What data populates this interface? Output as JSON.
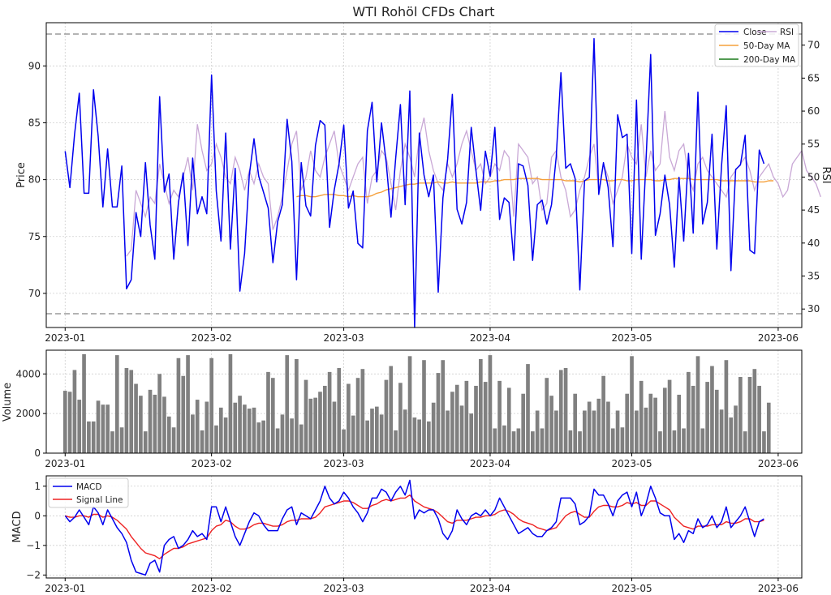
{
  "chart_data": [
    {
      "type": "line",
      "title": "WTI Rohöl CFDs Chart",
      "xlabel": "",
      "ylabel": "Price",
      "y2label": "RSI",
      "xlim": [
        "2022-12-28",
        "2023-06-06"
      ],
      "ylim": [
        67,
        93.8
      ],
      "y2lim": [
        27.2,
        73.4
      ],
      "x_ticks": [
        "2023-01",
        "2023-02",
        "2023-03",
        "2023-04",
        "2023-05",
        "2023-06"
      ],
      "y_ticks": [
        "70",
        "75",
        "80",
        "85",
        "90"
      ],
      "y2_ticks": [
        "30",
        "35",
        "40",
        "45",
        "50",
        "55",
        "60",
        "65",
        "70"
      ],
      "rsi_reference_lines": [
        30,
        70
      ],
      "grid": true,
      "legend_position": "top-right",
      "start_date": "2023-01-01",
      "series": [
        {
          "name": "Close",
          "color": "#0000ee",
          "values": [
            82.5,
            79.3,
            84.0,
            87.6,
            78.8,
            78.8,
            87.9,
            83.8,
            77.6,
            82.7,
            77.6,
            77.6,
            81.2,
            70.4,
            71.2,
            77.1,
            75.0,
            81.5,
            76.0,
            73.0,
            87.3,
            78.9,
            80.5,
            73.0,
            78.0,
            80.6,
            74.2,
            81.9,
            77.0,
            78.5,
            77.0,
            89.2,
            79.0,
            74.6,
            84.1,
            73.9,
            81.0,
            70.2,
            73.5,
            80.4,
            83.6,
            80.3,
            78.9,
            77.5,
            72.7,
            76.3,
            77.8,
            85.3,
            81.6,
            71.2,
            81.5,
            77.7,
            76.8,
            83.0,
            85.2,
            84.8,
            75.8,
            79.1,
            81.4,
            84.8,
            77.5,
            79.0,
            74.4,
            74.0,
            84.3,
            86.8,
            79.8,
            85.0,
            81.5,
            76.7,
            81.9,
            86.6,
            77.8,
            87.8,
            67.0,
            84.1,
            80.4,
            78.5,
            80.4,
            70.1,
            78.4,
            81.8,
            87.5,
            77.4,
            76.1,
            78.0,
            84.6,
            80.8,
            77.3,
            82.5,
            80.3,
            84.6,
            76.5,
            78.4,
            78.0,
            72.9,
            81.4,
            81.2,
            79.5,
            72.9,
            77.8,
            78.2,
            76.1,
            77.8,
            82.0,
            89.4,
            81.0,
            81.4,
            80.1,
            70.3,
            79.9,
            80.2,
            92.4,
            78.7,
            81.5,
            79.3,
            74.1,
            85.7,
            83.7,
            84.0,
            73.5,
            87.0,
            73.0,
            81.6,
            91.0,
            75.1,
            77.0,
            80.4,
            77.8,
            72.3,
            80.2,
            74.6,
            82.3,
            75.3,
            87.7,
            76.1,
            78.0,
            84.0,
            73.9,
            81.2,
            86.5,
            72.0,
            80.9,
            81.3,
            83.9,
            73.8,
            73.5,
            82.6,
            81.4
          ]
        },
        {
          "name": "50-Day MA",
          "color": "#f5a03c",
          "start_index": 49,
          "values": [
            78.5,
            78.6,
            78.6,
            78.5,
            78.5,
            78.6,
            78.7,
            78.7,
            78.7,
            78.6,
            78.6,
            78.5,
            78.6,
            78.5,
            78.5,
            78.5,
            78.6,
            78.8,
            78.9,
            79.1,
            79.2,
            79.3,
            79.4,
            79.5,
            79.6,
            79.6,
            79.7,
            79.7,
            79.7,
            79.7,
            79.8,
            79.7,
            79.7,
            79.8,
            79.7,
            79.7,
            79.7,
            79.7,
            79.7,
            79.8,
            79.8,
            79.8,
            79.9,
            79.9,
            80.0,
            80.0,
            80.0,
            80.1,
            80.1,
            80.1,
            80.1,
            80.1,
            80.0,
            80.0,
            80.0,
            80.0,
            80.0,
            79.9,
            79.9,
            79.9,
            79.8,
            79.9,
            80.0,
            80.0,
            80.0,
            80.0,
            79.9,
            79.9,
            80.0,
            80.0,
            79.9,
            79.9,
            80.0,
            80.0,
            80.0,
            80.0,
            79.9,
            79.9,
            80.0,
            80.0,
            80.1,
            80.1,
            80.1,
            80.1,
            80.0,
            80.0,
            80.0,
            80.0,
            80.0,
            80.0,
            79.9,
            79.9,
            79.9,
            79.9,
            79.9,
            79.9,
            79.9,
            79.8,
            79.8,
            79.8,
            79.9,
            79.9
          ]
        },
        {
          "name": "200-Day MA",
          "color": "#1a7a1a",
          "values": []
        },
        {
          "name": "RSI",
          "axis": "right",
          "color": "#c9a8d6",
          "start_index": 13,
          "values": [
            38.0,
            39.0,
            48.0,
            46.0,
            44.0,
            47.0,
            46.0,
            52.0,
            49.0,
            46.0,
            48.0,
            47.0,
            50.0,
            53.0,
            48.0,
            58.0,
            54.0,
            51.0,
            52.0,
            55.0,
            53.0,
            50.0,
            49.0,
            53.0,
            51.0,
            48.0,
            51.0,
            49.0,
            52.0,
            50.0,
            49.0,
            42.0,
            44.0,
            47.0,
            51.0,
            55.0,
            57.0,
            48.0,
            50.0,
            54.0,
            51.0,
            50.0,
            53.0,
            55.0,
            57.0,
            52.0,
            50.0,
            48.0,
            50.0,
            52.0,
            53.0,
            46.0,
            50.0,
            51.0,
            54.0,
            53.0,
            49.0,
            45.0,
            51.0,
            55.0,
            53.0,
            50.0,
            56.0,
            59.0,
            54.0,
            51.0,
            49.0,
            48.0,
            52.0,
            50.0,
            52.0,
            55.0,
            57.0,
            54.0,
            51.0,
            52.0,
            49.0,
            50.0,
            52.0,
            51.0,
            54.0,
            53.0,
            44.0,
            55.0,
            54.0,
            53.0,
            49.0,
            50.0,
            45.0,
            46.0,
            53.0,
            54.0,
            50.0,
            48.0,
            44.0,
            45.0,
            48.0,
            50.0,
            53.0,
            55.0,
            48.0,
            52.0,
            50.0,
            46.0,
            48.0,
            50.0,
            55.0,
            53.0,
            52.0,
            58.0,
            50.0,
            54.0,
            51.0,
            52.0,
            60.0,
            53.0,
            51.0,
            54.0,
            55.0,
            50.0,
            48.0,
            52.0,
            53.0,
            51.0,
            50.0,
            49.0,
            48.0,
            47.0,
            50.0,
            51.0,
            52.0,
            53.0,
            51.0,
            48.0,
            50.0,
            51.0,
            52.0,
            50.0,
            49.0,
            47.0,
            48.0,
            52.0,
            53.0,
            54.0,
            51.0,
            50.0,
            49.0,
            47.0
          ]
        }
      ]
    },
    {
      "type": "bar",
      "title": "",
      "xlabel": "",
      "ylabel": "Volume",
      "xlim": [
        "2022-12-28",
        "2023-06-06"
      ],
      "ylim": [
        0,
        5200
      ],
      "x_ticks": [
        "2023-01",
        "2023-02",
        "2023-03",
        "2023-04",
        "2023-05",
        "2023-06"
      ],
      "y_ticks": [
        "0",
        "2000",
        "4000"
      ],
      "grid": true,
      "start_date": "2023-01-01",
      "color": "#808080",
      "values": [
        3150,
        3100,
        4200,
        2700,
        5000,
        1600,
        1600,
        2650,
        2450,
        2450,
        1100,
        4950,
        1300,
        4300,
        4200,
        3500,
        2900,
        1100,
        3200,
        2950,
        4000,
        2850,
        1850,
        1300,
        4800,
        3900,
        4950,
        1950,
        2700,
        1150,
        2600,
        4800,
        1400,
        2300,
        1800,
        5000,
        2550,
        2900,
        2450,
        2250,
        2300,
        1550,
        1650,
        4100,
        3800,
        1250,
        1950,
        4950,
        1750,
        4750,
        1450,
        3700,
        2750,
        2800,
        3100,
        3400,
        4100,
        2600,
        4300,
        1200,
        3500,
        1900,
        3800,
        4250,
        1650,
        2250,
        2350,
        1950,
        3700,
        4400,
        1150,
        3550,
        2200,
        4900,
        1800,
        1700,
        4700,
        1600,
        2550,
        4050,
        4700,
        2150,
        3100,
        3450,
        2400,
        3650,
        2000,
        3400,
        4750,
        3600,
        4950,
        1250,
        3650,
        1400,
        3300,
        1100,
        1250,
        3000,
        4500,
        1100,
        2150,
        1250,
        3800,
        2900,
        2150,
        4200,
        4300,
        1150,
        3000,
        1100,
        2150,
        2600,
        2150,
        2750,
        3900,
        2600,
        1250,
        2150,
        1300,
        3000,
        4900,
        2150,
        3650,
        2300,
        3000,
        2800,
        1100,
        3300,
        3700,
        1150,
        2950,
        1250,
        4100,
        3400,
        4900,
        1250,
        3600,
        4400,
        3200,
        2200,
        4700,
        1800,
        2400,
        3850,
        1100,
        3850,
        4250,
        3400,
        1100,
        2550
      ]
    },
    {
      "type": "line",
      "title": "",
      "xlabel": "",
      "ylabel": "MACD",
      "xlim": [
        "2022-12-28",
        "2023-06-06"
      ],
      "ylim": [
        -2.1,
        1.35
      ],
      "x_ticks": [
        "2023-01",
        "2023-02",
        "2023-03",
        "2023-04",
        "2023-05",
        "2023-06"
      ],
      "y_ticks": [
        "1",
        "0",
        "−1",
        "−2"
      ],
      "grid": true,
      "legend_position": "top-left",
      "start_date": "2023-01-01",
      "series": [
        {
          "name": "MACD",
          "color": "#0000ee",
          "values": [
            0.0,
            -0.2,
            -0.05,
            0.2,
            -0.05,
            -0.3,
            0.3,
            0.1,
            -0.3,
            0.2,
            -0.1,
            -0.4,
            -0.6,
            -0.9,
            -1.5,
            -1.9,
            -1.95,
            -2.0,
            -1.6,
            -1.5,
            -1.9,
            -1.0,
            -0.8,
            -0.7,
            -1.1,
            -1.0,
            -0.8,
            -0.5,
            -0.7,
            -0.6,
            -0.8,
            0.3,
            0.3,
            -0.2,
            0.3,
            -0.2,
            -0.7,
            -1.0,
            -0.6,
            -0.2,
            0.1,
            0.0,
            -0.3,
            -0.5,
            -0.5,
            -0.5,
            -0.1,
            0.2,
            0.3,
            -0.3,
            0.1,
            0.0,
            -0.1,
            0.2,
            0.5,
            1.0,
            0.6,
            0.4,
            0.5,
            0.8,
            0.6,
            0.3,
            0.1,
            -0.2,
            0.1,
            0.6,
            0.6,
            0.9,
            0.8,
            0.5,
            0.8,
            1.0,
            0.7,
            1.2,
            -0.1,
            0.2,
            0.1,
            0.2,
            0.2,
            -0.1,
            -0.6,
            -0.8,
            -0.5,
            0.2,
            -0.1,
            -0.3,
            0.0,
            0.1,
            0.0,
            0.2,
            0.0,
            0.2,
            0.6,
            0.3,
            0.0,
            -0.3,
            -0.6,
            -0.5,
            -0.4,
            -0.6,
            -0.7,
            -0.7,
            -0.5,
            -0.4,
            -0.2,
            0.6,
            0.6,
            0.6,
            0.4,
            -0.3,
            -0.2,
            0.0,
            0.9,
            0.7,
            0.7,
            0.4,
            0.0,
            0.5,
            0.7,
            0.8,
            0.3,
            0.8,
            0.0,
            0.4,
            1.0,
            0.6,
            0.1,
            0.0,
            0.0,
            -0.8,
            -0.6,
            -0.9,
            -0.5,
            -0.6,
            -0.1,
            -0.4,
            -0.3,
            0.0,
            -0.4,
            -0.2,
            0.3,
            -0.4,
            -0.2,
            0.0,
            0.3,
            -0.2,
            -0.7,
            -0.2,
            -0.1
          ]
        },
        {
          "name": "Signal Line",
          "color": "#ee2222",
          "values": [
            0.0,
            -0.05,
            -0.05,
            0.0,
            0.0,
            -0.05,
            0.05,
            0.05,
            -0.05,
            0.0,
            -0.05,
            -0.15,
            -0.3,
            -0.45,
            -0.7,
            -0.9,
            -1.1,
            -1.25,
            -1.3,
            -1.35,
            -1.45,
            -1.3,
            -1.2,
            -1.1,
            -1.1,
            -1.05,
            -0.95,
            -0.9,
            -0.85,
            -0.8,
            -0.75,
            -0.5,
            -0.35,
            -0.3,
            -0.15,
            -0.2,
            -0.35,
            -0.45,
            -0.45,
            -0.4,
            -0.3,
            -0.25,
            -0.25,
            -0.3,
            -0.35,
            -0.35,
            -0.3,
            -0.2,
            -0.15,
            -0.15,
            -0.1,
            -0.1,
            -0.1,
            -0.05,
            0.1,
            0.3,
            0.35,
            0.4,
            0.45,
            0.5,
            0.5,
            0.45,
            0.35,
            0.25,
            0.25,
            0.35,
            0.4,
            0.5,
            0.55,
            0.5,
            0.55,
            0.6,
            0.6,
            0.7,
            0.5,
            0.4,
            0.3,
            0.25,
            0.2,
            0.1,
            -0.05,
            -0.2,
            -0.25,
            -0.15,
            -0.15,
            -0.15,
            -0.1,
            -0.05,
            -0.05,
            0.0,
            0.0,
            0.05,
            0.15,
            0.2,
            0.15,
            0.05,
            -0.1,
            -0.2,
            -0.25,
            -0.3,
            -0.4,
            -0.45,
            -0.5,
            -0.45,
            -0.4,
            -0.2,
            0.0,
            0.1,
            0.15,
            0.05,
            -0.05,
            -0.05,
            0.15,
            0.3,
            0.35,
            0.35,
            0.3,
            0.3,
            0.35,
            0.45,
            0.4,
            0.45,
            0.35,
            0.35,
            0.5,
            0.5,
            0.4,
            0.3,
            0.2,
            -0.05,
            -0.2,
            -0.35,
            -0.4,
            -0.45,
            -0.35,
            -0.35,
            -0.35,
            -0.3,
            -0.3,
            -0.3,
            -0.2,
            -0.25,
            -0.25,
            -0.2,
            -0.1,
            -0.1,
            -0.2,
            -0.2,
            -0.15
          ]
        }
      ]
    }
  ]
}
